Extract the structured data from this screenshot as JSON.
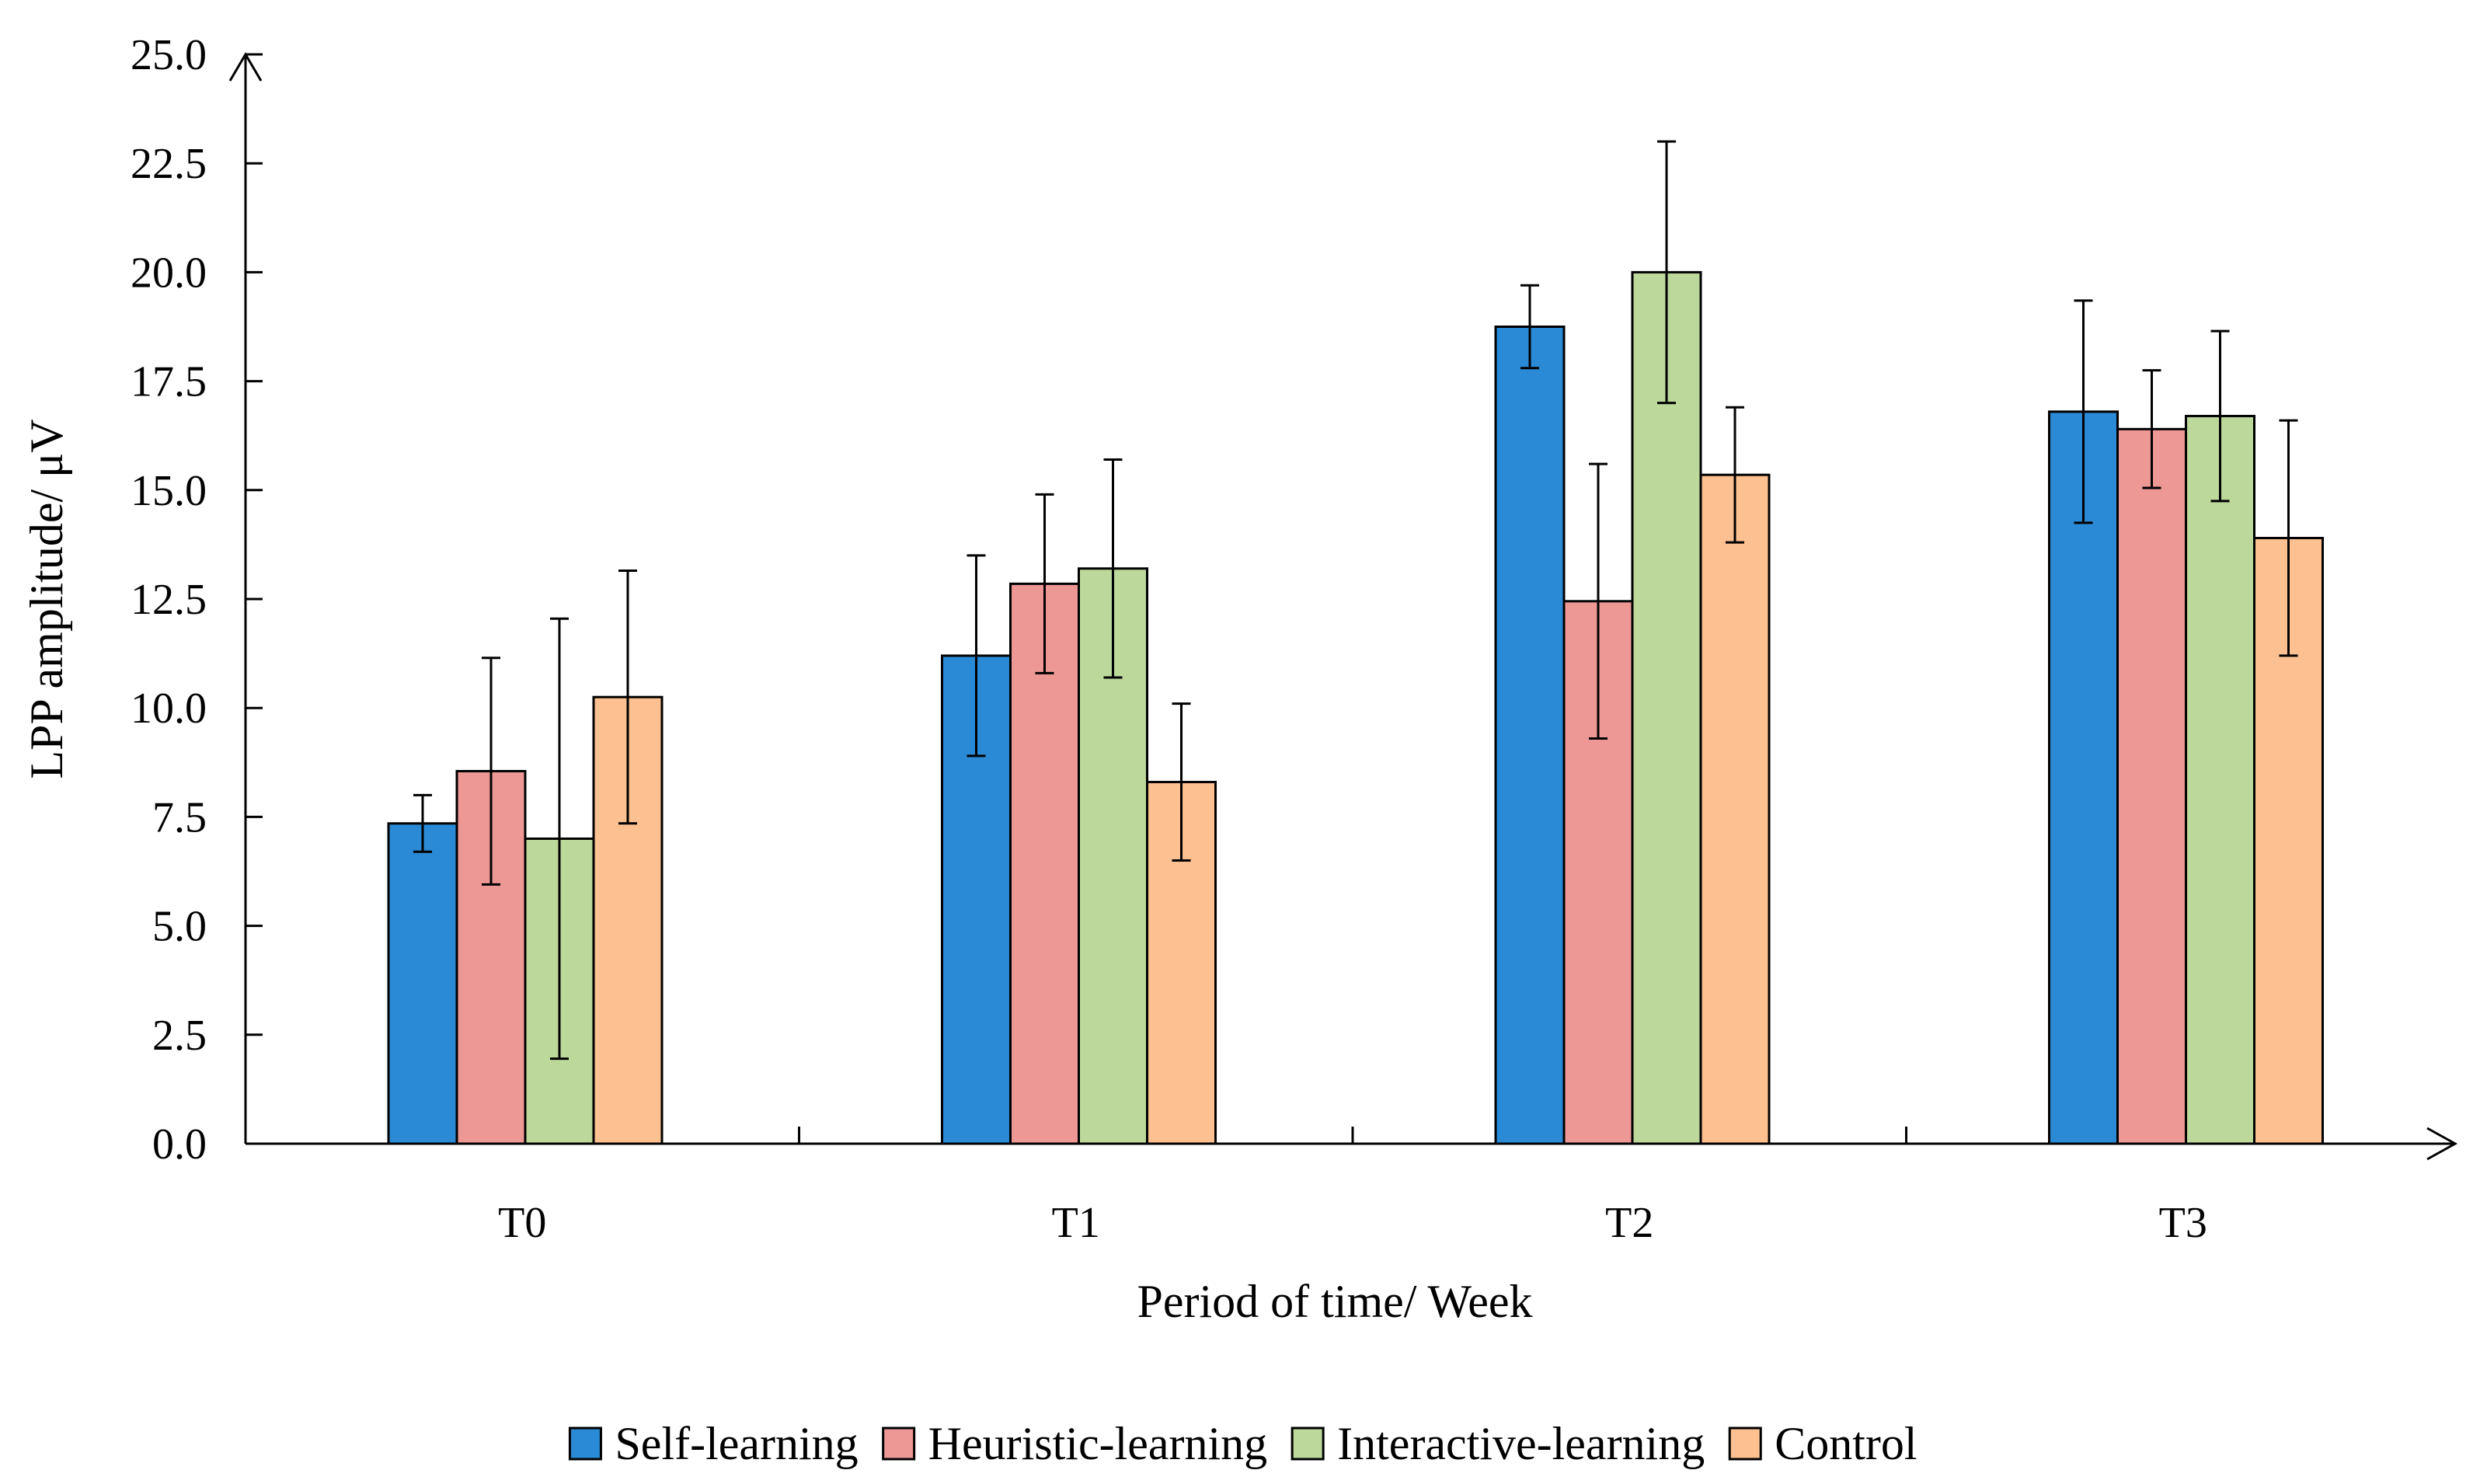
{
  "chart_data": {
    "type": "bar",
    "title": "",
    "xlabel": "Period of time/ Week",
    "ylabel": "LPP amplitude/ μV",
    "ylim": [
      0,
      25
    ],
    "yticks": [
      "0.0",
      "2.5",
      "5.0",
      "7.5",
      "10.0",
      "12.5",
      "15.0",
      "17.5",
      "20.0",
      "22.5",
      "25.0"
    ],
    "categories": [
      "T0",
      "T1",
      "T2",
      "T3"
    ],
    "series": [
      {
        "name": "Self-learning",
        "color": "#2A8AD6",
        "values": [
          7.35,
          11.2,
          18.75,
          16.8
        ],
        "errors": [
          0.65,
          2.3,
          0.95,
          2.55
        ]
      },
      {
        "name": "Heuristic-learning",
        "color": "#EE9895",
        "values": [
          8.55,
          12.85,
          12.45,
          16.4
        ],
        "errors": [
          2.6,
          2.05,
          3.15,
          1.35
        ]
      },
      {
        "name": "Interactive-learning",
        "color": "#BCD89B",
        "values": [
          7.0,
          13.2,
          20.0,
          16.7
        ],
        "errors": [
          5.05,
          2.5,
          3.0,
          1.95
        ]
      },
      {
        "name": "Control",
        "color": "#FDC090",
        "values": [
          10.25,
          8.3,
          15.35,
          13.9
        ],
        "errors": [
          2.9,
          1.8,
          1.55,
          2.7
        ]
      }
    ],
    "legend_position": "bottom-center"
  }
}
